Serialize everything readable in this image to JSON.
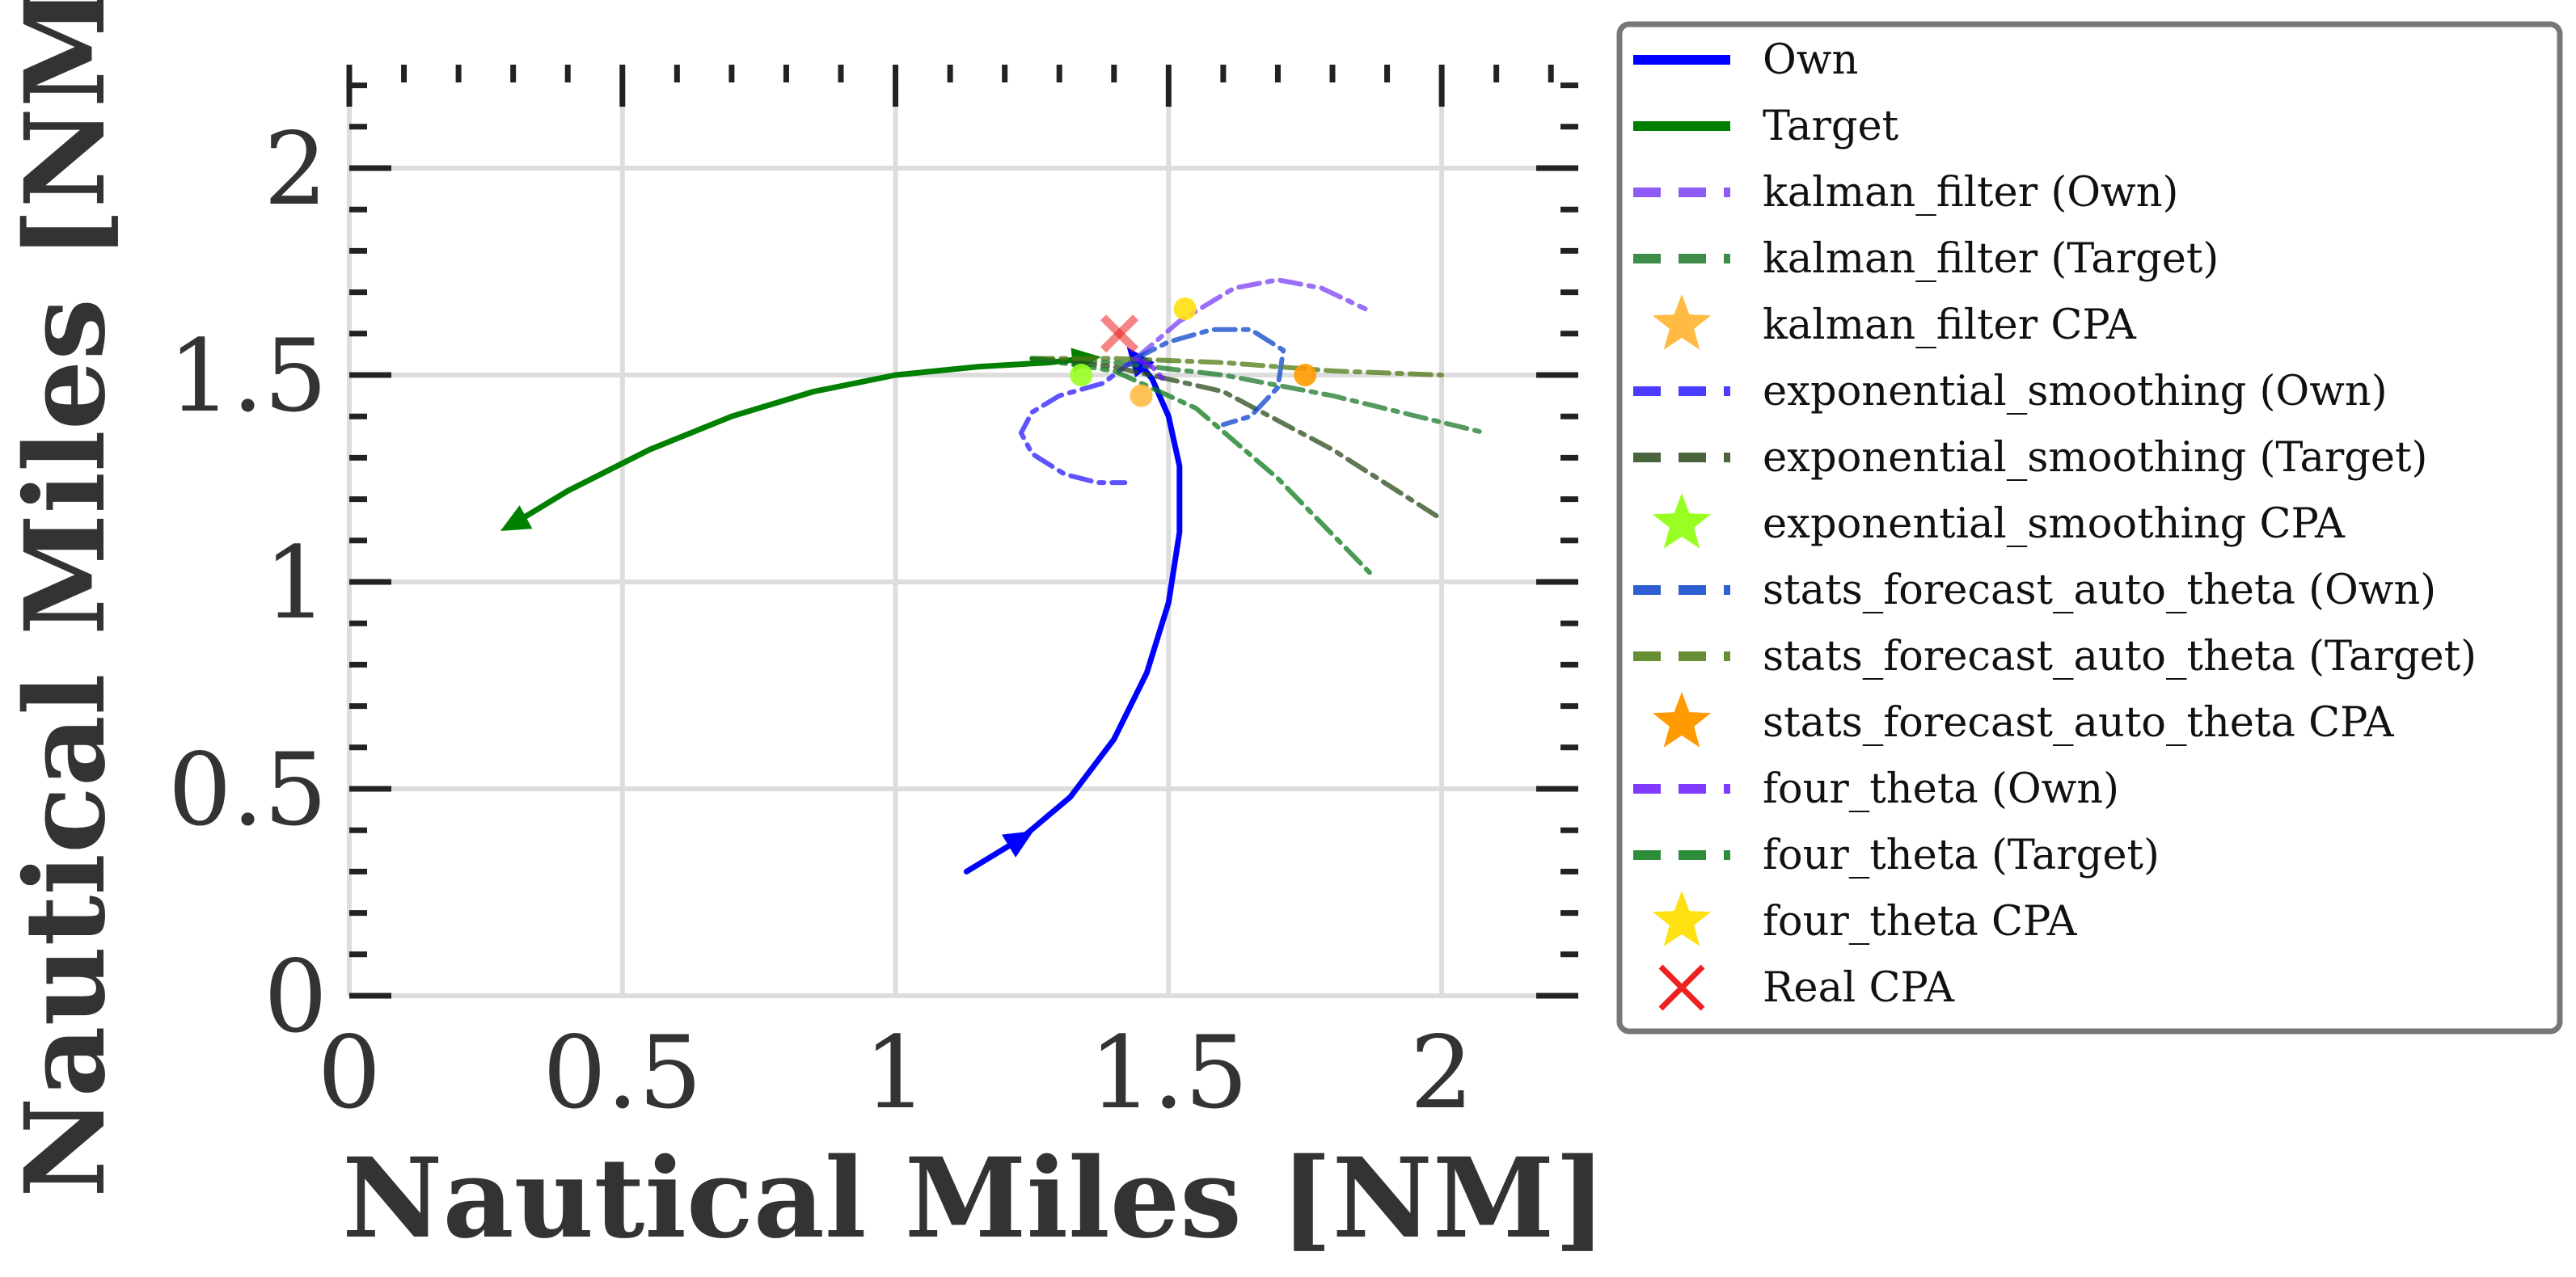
{
  "chart_data": {
    "type": "line",
    "title": "",
    "xlabel": "Nautical Miles [NM]",
    "ylabel": "Nautical Miles [NM]",
    "xlim": [
      0,
      2.25
    ],
    "ylim": [
      0,
      2.25
    ],
    "x_ticks": [
      0,
      0.5,
      1,
      1.5,
      2
    ],
    "x_tick_labels": [
      "0",
      "0.5",
      "1",
      "1.5",
      "2"
    ],
    "y_ticks": [
      0,
      0.5,
      1,
      1.5,
      2
    ],
    "y_tick_labels": [
      "0",
      "0.5",
      "1",
      "1.5",
      "2"
    ],
    "grid": true,
    "legend_position": "outside-right",
    "series": [
      {
        "name": "Own",
        "kind": "solid",
        "color": "#0000ff",
        "points": [
          [
            1.13,
            0.3
          ],
          [
            1.18,
            0.34
          ],
          [
            1.23,
            0.38
          ],
          [
            1.32,
            0.48
          ],
          [
            1.4,
            0.62
          ],
          [
            1.46,
            0.78
          ],
          [
            1.5,
            0.95
          ],
          [
            1.52,
            1.12
          ],
          [
            1.52,
            1.28
          ],
          [
            1.5,
            1.4
          ],
          [
            1.47,
            1.49
          ],
          [
            1.44,
            1.54
          ]
        ]
      },
      {
        "name": "Target",
        "kind": "solid",
        "color": "#008000",
        "points": [
          [
            0.3,
            1.14
          ],
          [
            0.4,
            1.22
          ],
          [
            0.55,
            1.32
          ],
          [
            0.7,
            1.4
          ],
          [
            0.85,
            1.46
          ],
          [
            1.0,
            1.5
          ],
          [
            1.15,
            1.52
          ],
          [
            1.28,
            1.53
          ],
          [
            1.35,
            1.54
          ]
        ]
      },
      {
        "name": "kalman_filter (Own)",
        "kind": "dashed",
        "color": "#7b3ff5",
        "points": [
          [
            1.44,
            1.54
          ],
          [
            1.52,
            1.63
          ],
          [
            1.62,
            1.71
          ],
          [
            1.7,
            1.73
          ],
          [
            1.78,
            1.71
          ],
          [
            1.86,
            1.66
          ]
        ]
      },
      {
        "name": "kalman_filter (Target)",
        "kind": "dashed",
        "color": "#1c7a2a",
        "points": [
          [
            1.25,
            1.54
          ],
          [
            1.4,
            1.53
          ],
          [
            1.6,
            1.5
          ],
          [
            1.8,
            1.45
          ],
          [
            2.08,
            1.36
          ]
        ]
      },
      {
        "name": "kalman_filter CPA",
        "kind": "star",
        "color": "#ffbb44",
        "points": [
          [
            1.45,
            1.45
          ]
        ]
      },
      {
        "name": "exponential_smoothing (Own)",
        "kind": "dashed",
        "color": "#2a1aff",
        "points": [
          [
            1.44,
            1.54
          ],
          [
            1.38,
            1.48
          ],
          [
            1.3,
            1.45
          ],
          [
            1.25,
            1.41
          ],
          [
            1.23,
            1.36
          ],
          [
            1.25,
            1.31
          ],
          [
            1.31,
            1.26
          ],
          [
            1.37,
            1.24
          ],
          [
            1.42,
            1.24
          ]
        ]
      },
      {
        "name": "exponential_smoothing (Target)",
        "kind": "dashed",
        "color": "#2b4a1a",
        "points": [
          [
            1.25,
            1.54
          ],
          [
            1.4,
            1.52
          ],
          [
            1.6,
            1.46
          ],
          [
            1.8,
            1.32
          ],
          [
            1.99,
            1.16
          ]
        ]
      },
      {
        "name": "exponential_smoothing CPA",
        "kind": "star",
        "color": "#99ff22",
        "points": [
          [
            1.34,
            1.5
          ]
        ]
      },
      {
        "name": "stats_forecast_auto_theta (Own)",
        "kind": "dashed",
        "color": "#0a44cc",
        "points": [
          [
            1.44,
            1.54
          ],
          [
            1.5,
            1.58
          ],
          [
            1.58,
            1.61
          ],
          [
            1.65,
            1.61
          ],
          [
            1.71,
            1.56
          ],
          [
            1.7,
            1.47
          ],
          [
            1.65,
            1.4
          ],
          [
            1.6,
            1.38
          ]
        ]
      },
      {
        "name": "stats_forecast_auto_theta (Target)",
        "kind": "dashed",
        "color": "#4d7a12",
        "points": [
          [
            1.25,
            1.54
          ],
          [
            1.4,
            1.54
          ],
          [
            1.6,
            1.53
          ],
          [
            1.8,
            1.51
          ],
          [
            2.0,
            1.5
          ]
        ]
      },
      {
        "name": "stats_forecast_auto_theta CPA",
        "kind": "star",
        "color": "#ff9b00",
        "points": [
          [
            1.75,
            1.5
          ]
        ]
      },
      {
        "name": "four_theta (Own)",
        "kind": "dashed",
        "color": "#6a1aff",
        "points": [
          [
            1.44,
            1.54
          ],
          [
            1.47,
            1.52
          ],
          [
            1.49,
            1.49
          ]
        ]
      },
      {
        "name": "four_theta (Target)",
        "kind": "dashed",
        "color": "#0a7a1a",
        "points": [
          [
            1.25,
            1.54
          ],
          [
            1.4,
            1.51
          ],
          [
            1.55,
            1.42
          ],
          [
            1.7,
            1.25
          ],
          [
            1.87,
            1.02
          ]
        ]
      },
      {
        "name": "four_theta CPA",
        "kind": "star",
        "color": "#ffe010",
        "points": [
          [
            1.53,
            1.66
          ]
        ]
      },
      {
        "name": "Real CPA",
        "kind": "x",
        "color": "#ee2020",
        "points": [
          [
            1.41,
            1.6
          ]
        ]
      }
    ]
  }
}
